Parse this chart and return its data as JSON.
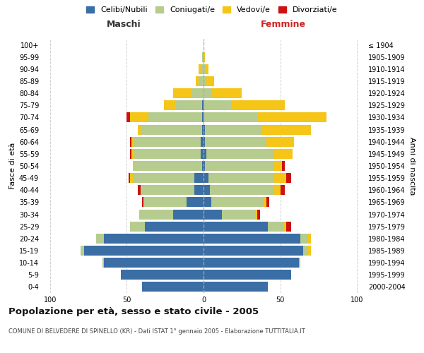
{
  "age_groups": [
    "0-4",
    "5-9",
    "10-14",
    "15-19",
    "20-24",
    "25-29",
    "30-34",
    "35-39",
    "40-44",
    "45-49",
    "50-54",
    "55-59",
    "60-64",
    "65-69",
    "70-74",
    "75-79",
    "80-84",
    "85-89",
    "90-94",
    "95-99",
    "100+"
  ],
  "birth_years": [
    "2000-2004",
    "1995-1999",
    "1990-1994",
    "1985-1989",
    "1980-1984",
    "1975-1979",
    "1970-1974",
    "1965-1969",
    "1960-1964",
    "1955-1959",
    "1950-1954",
    "1945-1949",
    "1940-1944",
    "1935-1939",
    "1930-1934",
    "1925-1929",
    "1920-1924",
    "1915-1919",
    "1910-1914",
    "1905-1909",
    "≤ 1904"
  ],
  "maschi": {
    "celibi": [
      40,
      54,
      65,
      78,
      65,
      38,
      20,
      11,
      6,
      6,
      1,
      2,
      2,
      1,
      1,
      1,
      0,
      0,
      0,
      0,
      0
    ],
    "coniugati": [
      0,
      0,
      1,
      2,
      5,
      10,
      22,
      28,
      35,
      40,
      44,
      43,
      43,
      40,
      35,
      17,
      8,
      3,
      2,
      1,
      0
    ],
    "vedovi": [
      0,
      0,
      0,
      0,
      0,
      0,
      0,
      0,
      0,
      2,
      1,
      2,
      2,
      2,
      12,
      8,
      12,
      2,
      1,
      0,
      0
    ],
    "divorziati": [
      0,
      0,
      0,
      0,
      0,
      0,
      0,
      1,
      2,
      1,
      0,
      1,
      1,
      0,
      2,
      0,
      0,
      0,
      0,
      0,
      0
    ]
  },
  "femmine": {
    "nubili": [
      42,
      57,
      62,
      65,
      63,
      42,
      12,
      5,
      4,
      3,
      1,
      2,
      1,
      1,
      0,
      0,
      0,
      0,
      0,
      0,
      0
    ],
    "coniugate": [
      0,
      0,
      1,
      3,
      5,
      10,
      22,
      34,
      42,
      43,
      45,
      44,
      40,
      37,
      35,
      18,
      5,
      2,
      1,
      0,
      0
    ],
    "vedove": [
      0,
      0,
      0,
      2,
      2,
      2,
      1,
      2,
      4,
      8,
      5,
      12,
      18,
      32,
      45,
      35,
      20,
      5,
      2,
      1,
      0
    ],
    "divorziate": [
      0,
      0,
      0,
      0,
      0,
      3,
      2,
      2,
      3,
      3,
      2,
      0,
      0,
      0,
      0,
      0,
      0,
      0,
      0,
      0,
      0
    ]
  },
  "colors": {
    "celibi_nubili": "#3a6ea5",
    "coniugati": "#b5cc8e",
    "vedovi": "#f5c518",
    "divorziati": "#cc1111"
  },
  "xlim": 105,
  "title": "Popolazione per età, sesso e stato civile - 2005",
  "subtitle": "COMUNE DI BELVEDERE DI SPINELLO (KR) - Dati ISTAT 1° gennaio 2005 - Elaborazione TUTTITALIA.IT",
  "ylabel_left": "Fasce di età",
  "ylabel_right": "Anni di nascita",
  "bg_color": "#ffffff",
  "grid_color": "#cccccc"
}
